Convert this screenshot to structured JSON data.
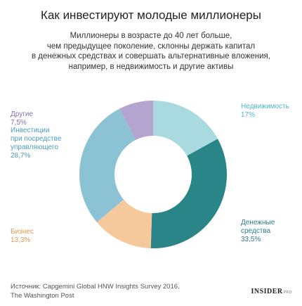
{
  "chart_data": {
    "type": "donut",
    "title": "Как инвестируют молодые миллионеры",
    "subtitle": [
      "Миллионеры в возрасте до 40 лет больше,",
      "чем предыдущее поколение, склонны держать капитал",
      "в денежных средствах и совершать альтернативные вложения,",
      "например, в недвижимость и другие активы"
    ],
    "categories": [
      "Недвижимость",
      "Денежные\nсредства",
      "Бизнес",
      "Инвестиции\nпри посредстве\nуправляющего",
      "Другие"
    ],
    "values": [
      17,
      33.5,
      13.3,
      28.7,
      7.5
    ],
    "value_labels": [
      "17%",
      "33,5%",
      "13,3%",
      "28,7%",
      "7,5%"
    ],
    "colors": [
      "#a8dadf",
      "#2a8589",
      "#f5c99b",
      "#8cc3d4",
      "#b3a5cf"
    ],
    "label_colors": [
      "#4fb8c3",
      "#2a7f84",
      "#e39a4f",
      "#4e9dba",
      "#8672b5"
    ],
    "source": [
      "Источник: Capgemini Global HNW Insights Survey 2016,",
      "The Washington Post"
    ],
    "logo": "INSIDER",
    "logo_suffix": "PRO"
  }
}
